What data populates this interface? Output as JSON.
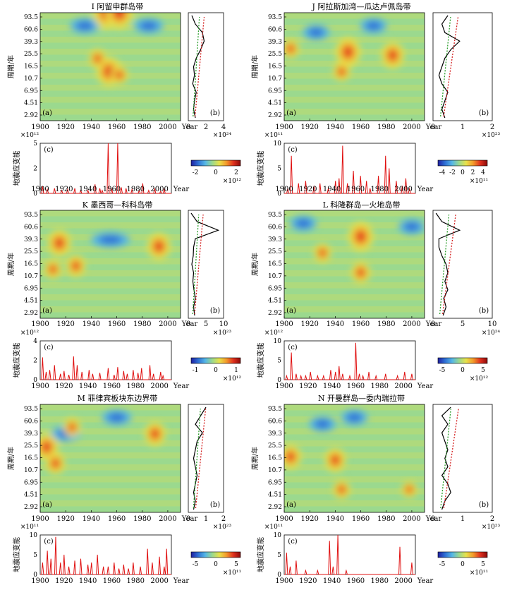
{
  "labels": {
    "period_axis": "周期/年",
    "strain_axis": "地震应变能",
    "year": "Year",
    "a": "(a)",
    "b": "(b)",
    "c": "(c)"
  },
  "colormap": [
    "#1f1fa0",
    "#2e6fd4",
    "#55b6e6",
    "#9bd98e",
    "#e8e14a",
    "#f39a2b",
    "#e0301e",
    "#8a0a0a"
  ],
  "chart_data": [
    {
      "id": "I",
      "type": "wavelet+line",
      "title": "I 阿留申群岛带",
      "periods": [
        "93.5",
        "60.6",
        "39.3",
        "25.5",
        "16.5",
        "10.7",
        "6.95",
        "4.51",
        "2.92"
      ],
      "years": [
        "1900",
        "1920",
        "1940",
        "1960",
        "1980",
        "2000"
      ],
      "hot": [
        [
          1952,
          3.0,
          1.0
        ],
        [
          1962,
          3.0,
          1.0
        ],
        [
          1954,
          1.2,
          0.9
        ],
        [
          1945,
          1.6,
          0.5
        ],
        [
          1962,
          1.1,
          0.5
        ]
      ],
      "cold": [
        [
          1935,
          2.6,
          0.6
        ],
        [
          1985,
          2.6,
          0.6
        ]
      ],
      "gws": {
        "ticks": [
          "0",
          "2",
          "4"
        ],
        "max": 4,
        "exp": "×10²⁴",
        "curve": [
          0.4,
          0.8,
          1.6,
          1.8,
          1.4,
          0.9,
          0.6,
          0.7,
          0.5,
          0.9,
          0.7,
          0.6,
          0.8
        ]
      },
      "strain": {
        "exp": "×10¹²",
        "ticks": [
          "0",
          "2",
          "5"
        ],
        "max": 5,
        "spikes": [
          [
            1902,
            0.7
          ],
          [
            1906,
            0.4
          ],
          [
            1912,
            0.5
          ],
          [
            1918,
            0.3
          ],
          [
            1923,
            0.4
          ],
          [
            1929,
            0.5
          ],
          [
            1934,
            0.3
          ],
          [
            1940,
            0.3
          ],
          [
            1946,
            0.9
          ],
          [
            1950,
            0.5
          ],
          [
            1952,
            0.3
          ],
          [
            1957,
            5.0
          ],
          [
            1960,
            0.4
          ],
          [
            1965,
            5.0
          ],
          [
            1968,
            0.6
          ],
          [
            1972,
            0.5
          ],
          [
            1977,
            0.4
          ],
          [
            1983,
            0.3
          ],
          [
            1986,
            1.0
          ],
          [
            1991,
            0.3
          ],
          [
            1996,
            0.5
          ],
          [
            2001,
            0.2
          ],
          [
            2004,
            0.4
          ]
        ]
      },
      "colorbar": {
        "ticks": [
          "-2",
          "0",
          "2"
        ],
        "exp": "×10¹²"
      }
    },
    {
      "id": "J",
      "type": "wavelet+line",
      "title": "J 阿拉斯加湾—瓜达卢佩岛带",
      "periods": [
        "93.5",
        "60.6",
        "39.3",
        "25.5",
        "16.5",
        "10.7",
        "6.95",
        "4.51",
        "2.92"
      ],
      "years": [
        "1900",
        "1920",
        "1940",
        "1960",
        "1980",
        "2000"
      ],
      "hot": [
        [
          1950,
          1.8,
          0.9
        ],
        [
          1985,
          1.7,
          0.8
        ],
        [
          1905,
          1.9,
          0.5
        ],
        [
          1945,
          1.2,
          0.5
        ]
      ],
      "cold": [
        [
          1925,
          2.4,
          0.5
        ],
        [
          1970,
          2.6,
          0.5
        ]
      ],
      "gws": {
        "ticks": [
          "0",
          "1",
          "2"
        ],
        "max": 2,
        "exp": "×10²³",
        "curve": [
          0.5,
          0.3,
          0.4,
          0.9,
          0.6,
          0.4,
          0.3,
          0.2,
          0.3,
          0.5,
          0.4,
          0.3,
          0.4
        ]
      },
      "strain": {
        "exp": "×10¹¹",
        "ticks": [
          "0",
          "5",
          "10"
        ],
        "max": 10,
        "spikes": [
          [
            1903,
            1.0
          ],
          [
            1906,
            7.5
          ],
          [
            1912,
            2.0
          ],
          [
            1918,
            2.5
          ],
          [
            1925,
            1.5
          ],
          [
            1930,
            2.0
          ],
          [
            1937,
            1.0
          ],
          [
            1943,
            2.5
          ],
          [
            1946,
            3.0
          ],
          [
            1949,
            9.5
          ],
          [
            1953,
            2.0
          ],
          [
            1958,
            4.5
          ],
          [
            1964,
            3.5
          ],
          [
            1969,
            2.5
          ],
          [
            1972,
            1.0
          ],
          [
            1979,
            3.5
          ],
          [
            1985,
            7.5
          ],
          [
            1988,
            5.0
          ],
          [
            1994,
            2.5
          ],
          [
            1999,
            1.5
          ],
          [
            2002,
            3.0
          ],
          [
            2005,
            1.0
          ]
        ]
      },
      "colorbar": {
        "ticks": [
          "-4",
          "-2",
          "0",
          "2",
          "4"
        ],
        "exp": "×10¹¹"
      }
    },
    {
      "id": "K",
      "type": "wavelet+line",
      "title": "K 墨西哥—科科岛带",
      "periods": [
        "93.5",
        "60.6",
        "39.3",
        "25.5",
        "16.5",
        "10.7",
        "6.95",
        "4.51",
        "2.92"
      ],
      "years": [
        "1900",
        "1920",
        "1940",
        "1960",
        "1980",
        "2000"
      ],
      "hot": [
        [
          1915,
          2.0,
          0.8
        ],
        [
          1993,
          1.9,
          0.8
        ],
        [
          1928,
          1.3,
          0.6
        ],
        [
          1910,
          1.2,
          0.5
        ]
      ],
      "cold": [
        [
          1955,
          2.1,
          0.9
        ]
      ],
      "gws": {
        "ticks": [
          "0",
          "5",
          "10"
        ],
        "max": 10,
        "exp": "×10²³",
        "curve": [
          0.8,
          2.5,
          8.5,
          2.0,
          1.5,
          1.4,
          1.0,
          1.5,
          1.3,
          1.6,
          2.0,
          1.5,
          1.8
        ]
      },
      "strain": {
        "exp": "×10¹²",
        "ticks": [
          "0",
          "2",
          "4"
        ],
        "max": 4,
        "spikes": [
          [
            1902,
            2.3
          ],
          [
            1905,
            0.8
          ],
          [
            1908,
            1.0
          ],
          [
            1912,
            1.5
          ],
          [
            1917,
            0.6
          ],
          [
            1920,
            0.9
          ],
          [
            1924,
            0.5
          ],
          [
            1928,
            2.4
          ],
          [
            1931,
            1.5
          ],
          [
            1935,
            0.8
          ],
          [
            1941,
            1.0
          ],
          [
            1944,
            0.6
          ],
          [
            1950,
            0.7
          ],
          [
            1957,
            1.2
          ],
          [
            1962,
            0.5
          ],
          [
            1965,
            1.3
          ],
          [
            1970,
            0.9
          ],
          [
            1973,
            0.6
          ],
          [
            1978,
            1.0
          ],
          [
            1982,
            0.7
          ],
          [
            1985,
            1.2
          ],
          [
            1992,
            1.5
          ],
          [
            1995,
            0.6
          ],
          [
            2001,
            0.8
          ],
          [
            2003,
            0.4
          ]
        ]
      },
      "colorbar": {
        "ticks": [
          "-1",
          "0",
          "1"
        ],
        "exp": "×10¹²"
      }
    },
    {
      "id": "L",
      "type": "wavelet+line",
      "title": "L 科隆群岛—火地岛带",
      "periods": [
        "93.5",
        "60.6",
        "39.3",
        "25.5",
        "16.5",
        "10.7",
        "6.95",
        "4.51",
        "2.92"
      ],
      "years": [
        "1900",
        "1920",
        "1940",
        "1960",
        "1980",
        "2000"
      ],
      "hot": [
        [
          1960,
          2.2,
          0.9
        ],
        [
          1960,
          1.1,
          0.6
        ],
        [
          1930,
          1.7,
          0.5
        ]
      ],
      "cold": [
        [
          1915,
          2.6,
          0.5
        ],
        [
          2000,
          2.5,
          0.5
        ]
      ],
      "gws": {
        "ticks": [
          "0",
          "5",
          "10"
        ],
        "max": 10,
        "exp": "×10²⁴",
        "curve": [
          0.5,
          1.5,
          4.5,
          1.0,
          1.0,
          1.5,
          2.2,
          2.5,
          2.0,
          2.5,
          1.8,
          2.2,
          1.7
        ]
      },
      "strain": {
        "exp": "×10¹²",
        "ticks": [
          "0",
          "5",
          "10"
        ],
        "max": 10,
        "spikes": [
          [
            1902,
            1.0
          ],
          [
            1906,
            7.0
          ],
          [
            1910,
            1.5
          ],
          [
            1914,
            1.0
          ],
          [
            1918,
            1.0
          ],
          [
            1922,
            2.0
          ],
          [
            1928,
            1.0
          ],
          [
            1933,
            1.0
          ],
          [
            1939,
            2.5
          ],
          [
            1943,
            2.0
          ],
          [
            1946,
            3.5
          ],
          [
            1949,
            1.5
          ],
          [
            1955,
            1.0
          ],
          [
            1960,
            9.5
          ],
          [
            1963,
            1.5
          ],
          [
            1966,
            1.0
          ],
          [
            1971,
            2.0
          ],
          [
            1977,
            1.0
          ],
          [
            1985,
            1.5
          ],
          [
            1995,
            1.0
          ],
          [
            2001,
            2.0
          ],
          [
            2007,
            1.5
          ]
        ]
      },
      "colorbar": {
        "ticks": [
          "-5",
          "0",
          "5"
        ],
        "exp": "×10¹²"
      }
    },
    {
      "id": "M",
      "type": "wavelet+line",
      "title": "M 菲律宾板块东边界带",
      "periods": [
        "93.5",
        "60.6",
        "39.3",
        "25.5",
        "16.5",
        "10.7",
        "6.95",
        "4.51",
        "2.92"
      ],
      "years": [
        "1900",
        "1920",
        "1940",
        "1960",
        "1980",
        "2000"
      ],
      "hot": [
        [
          1905,
          1.7,
          0.8
        ],
        [
          1912,
          1.2,
          0.6
        ],
        [
          1990,
          2.1,
          0.7
        ],
        [
          1925,
          2.3,
          0.5
        ]
      ],
      "cold": [
        [
          1920,
          2.1,
          0.6
        ],
        [
          1960,
          2.6,
          0.6
        ]
      ],
      "gws": {
        "ticks": [
          "0",
          "1",
          "2"
        ],
        "max": 2,
        "exp": "×10²³",
        "curve": [
          1.0,
          0.7,
          0.4,
          0.8,
          0.5,
          0.4,
          0.3,
          0.4,
          0.5,
          0.4,
          0.3,
          0.4,
          0.3
        ]
      },
      "strain": {
        "exp": "×10¹¹",
        "ticks": [
          "0",
          "5",
          "10"
        ],
        "max": 10,
        "spikes": [
          [
            1902,
            3.0
          ],
          [
            1906,
            6.0
          ],
          [
            1909,
            4.0
          ],
          [
            1913,
            9.5
          ],
          [
            1917,
            3.0
          ],
          [
            1920,
            5.0
          ],
          [
            1924,
            2.0
          ],
          [
            1929,
            3.5
          ],
          [
            1934,
            4.0
          ],
          [
            1940,
            2.5
          ],
          [
            1943,
            3.0
          ],
          [
            1948,
            5.0
          ],
          [
            1953,
            2.0
          ],
          [
            1957,
            2.0
          ],
          [
            1962,
            3.0
          ],
          [
            1966,
            1.5
          ],
          [
            1970,
            2.5
          ],
          [
            1974,
            1.5
          ],
          [
            1978,
            3.0
          ],
          [
            1984,
            2.0
          ],
          [
            1990,
            6.5
          ],
          [
            1994,
            3.0
          ],
          [
            2000,
            4.5
          ],
          [
            2004,
            2.0
          ],
          [
            2006,
            6.5
          ]
        ]
      },
      "colorbar": {
        "ticks": [
          "-5",
          "0",
          "5"
        ],
        "exp": "×10¹¹"
      }
    },
    {
      "id": "N",
      "type": "wavelet+line",
      "title": "N 开曼群岛—委内瑞拉带",
      "periods": [
        "93.5",
        "60.6",
        "39.3",
        "25.5",
        "16.5",
        "10.7",
        "6.95",
        "4.51",
        "2.92"
      ],
      "years": [
        "1900",
        "1920",
        "1940",
        "1960",
        "1980",
        "2000"
      ],
      "hot": [
        [
          1905,
          1.4,
          0.7
        ],
        [
          1940,
          1.3,
          0.7
        ],
        [
          1945,
          0.4,
          0.5
        ],
        [
          1998,
          0.4,
          0.4
        ]
      ],
      "cold": [
        [
          1930,
          2.4,
          0.5
        ],
        [
          1955,
          2.6,
          0.5
        ]
      ],
      "gws": {
        "ticks": [
          "0",
          "1",
          "2"
        ],
        "max": 2,
        "exp": "×10²³",
        "curve": [
          0.6,
          0.3,
          0.5,
          0.3,
          0.4,
          0.5,
          0.4,
          0.5,
          0.3,
          0.5,
          0.6,
          0.4,
          0.3
        ]
      },
      "strain": {
        "exp": "×10¹¹",
        "ticks": [
          "0",
          "5",
          "10"
        ],
        "max": 10,
        "spikes": [
          [
            1902,
            5.5
          ],
          [
            1905,
            2.0
          ],
          [
            1910,
            3.5
          ],
          [
            1918,
            1.0
          ],
          [
            1928,
            1.0
          ],
          [
            1938,
            8.5
          ],
          [
            1941,
            2.0
          ],
          [
            1945,
            10.0
          ],
          [
            1952,
            1.0
          ],
          [
            1997,
            7.0
          ],
          [
            2007,
            3.0
          ]
        ]
      },
      "colorbar": {
        "ticks": [
          "-5",
          "0",
          "5"
        ],
        "exp": "×10¹¹"
      }
    }
  ]
}
